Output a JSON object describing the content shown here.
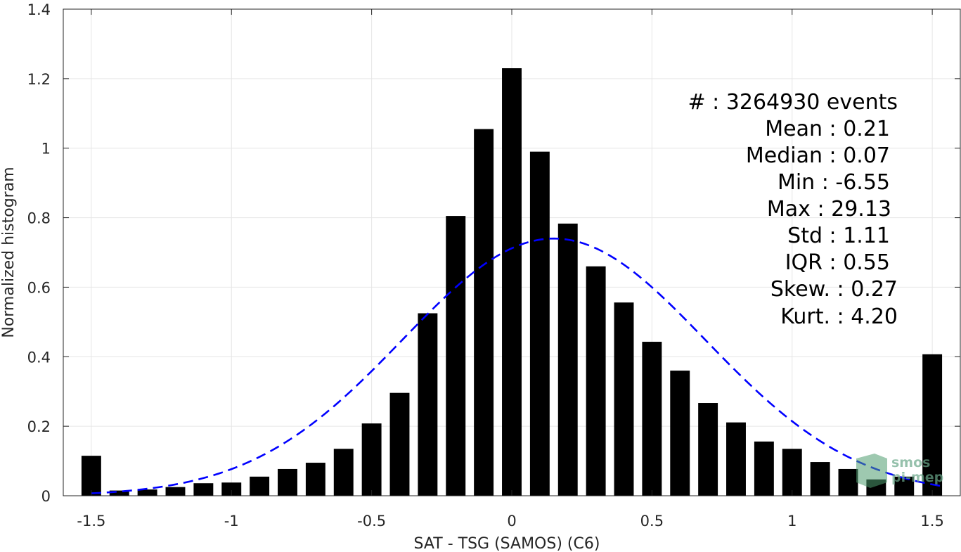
{
  "chart_data": {
    "type": "bar",
    "xlabel": "SAT - TSG (SAMOS) (C6)",
    "ylabel": "Normalized histogram",
    "xlim": [
      -1.6,
      1.6
    ],
    "ylim": [
      0,
      1.4
    ],
    "grid": true,
    "xticks": [
      -1.5,
      -1,
      -0.5,
      0,
      0.5,
      1,
      1.5
    ],
    "xtick_labels": [
      "-1.5",
      "-1",
      "-0.5",
      "0",
      "0.5",
      "1",
      "1.5"
    ],
    "yticks": [
      0,
      0.2,
      0.4,
      0.6,
      0.8,
      1,
      1.2,
      1.4
    ],
    "ytick_labels": [
      "0",
      "0.2",
      "0.4",
      "0.6",
      "0.8",
      "1",
      "1.2",
      "1.4"
    ],
    "bar_width": 0.07,
    "x": [
      -1.5,
      -1.4,
      -1.3,
      -1.2,
      -1.1,
      -1.0,
      -0.9,
      -0.8,
      -0.7,
      -0.6,
      -0.5,
      -0.4,
      -0.3,
      -0.2,
      -0.1,
      0.0,
      0.1,
      0.2,
      0.3,
      0.4,
      0.5,
      0.6,
      0.7,
      0.8,
      0.9,
      1.0,
      1.1,
      1.2,
      1.3,
      1.4,
      1.5
    ],
    "values": [
      0.115,
      0.015,
      0.018,
      0.025,
      0.036,
      0.038,
      0.055,
      0.077,
      0.095,
      0.135,
      0.208,
      0.296,
      0.525,
      0.805,
      1.055,
      1.23,
      0.99,
      0.783,
      0.66,
      0.556,
      0.443,
      0.36,
      0.267,
      0.211,
      0.156,
      0.135,
      0.097,
      0.077,
      0.047,
      0.055,
      0.407
    ],
    "bar_color": "#000000",
    "fit": {
      "type": "gaussian",
      "style": "dashed",
      "color": "#0000ff",
      "mean": 0.15,
      "std": 0.54,
      "peak": 0.74,
      "x_range": [
        -1.5,
        1.53
      ]
    },
    "legend": []
  },
  "stats": [
    {
      "label": "#  : 3264930 events"
    },
    {
      "label": "Mean : 0.21"
    },
    {
      "label": "Median : 0.07"
    },
    {
      "label": "Min : -6.55"
    },
    {
      "label": "Max : 29.13"
    },
    {
      "label": "Std : 1.11"
    },
    {
      "label": "IQR : 0.55"
    },
    {
      "label": "Skew. : 0.27"
    },
    {
      "label": "Kurt. : 4.20"
    }
  ],
  "watermark": {
    "line1": "smos",
    "line2": "pi-mep",
    "color": "#6aa88a"
  }
}
